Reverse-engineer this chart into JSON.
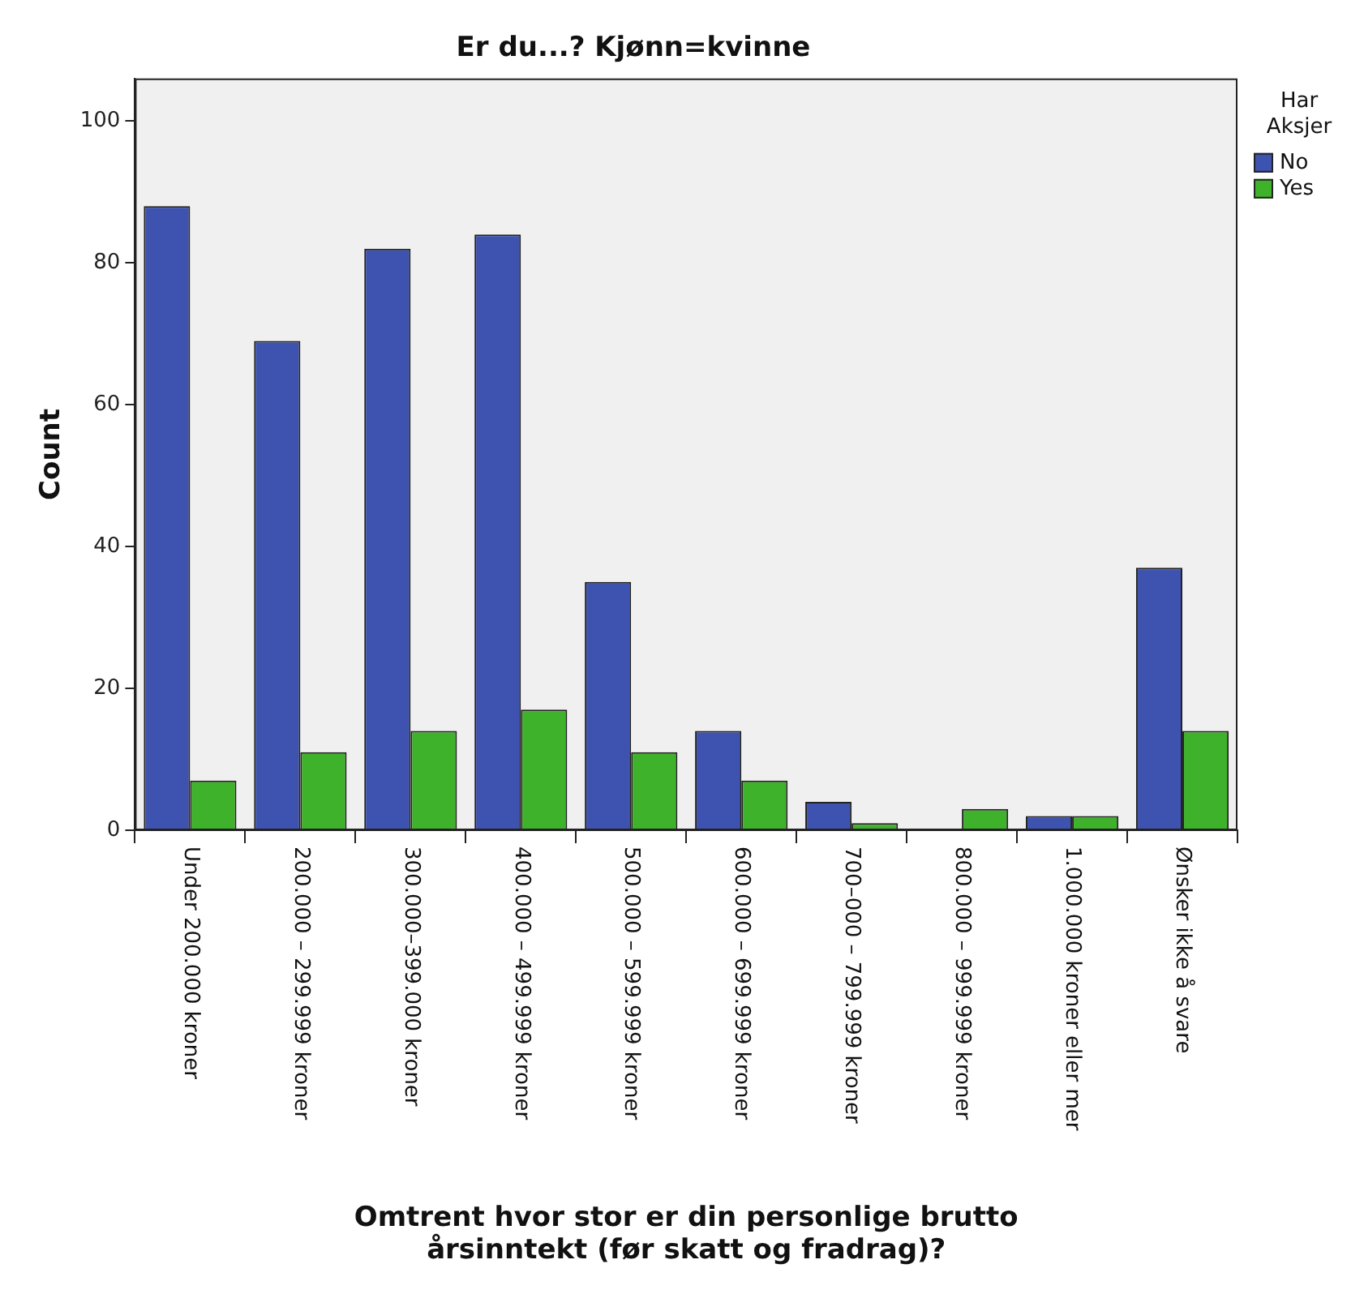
{
  "chart_data": {
    "type": "bar",
    "title": "Er du...? Kjønn=kvinne",
    "xlabel": "Omtrent hvor stor er din personlige brutto\nårsinntekt (før skatt og fradrag)?",
    "ylabel": "Count",
    "legend_title": "Har Aksjer",
    "categories": [
      "Under 200.000 kroner",
      "200.000 – 299.999 kroner",
      "300.000–399.000 kroner",
      "400.000 – 499.999 kroner",
      "500.000 – 599.999 kroner",
      "600.000 – 699.999 kroner",
      "700–000 – 799.999 kroner",
      "800.000 – 999.999 kroner",
      "1.000.000 kroner eller mer",
      "Ønsker ikke å svare"
    ],
    "series": [
      {
        "name": "No",
        "color": "#3e53b0",
        "values": [
          88,
          69,
          82,
          84,
          35,
          14,
          4,
          null,
          2,
          37
        ]
      },
      {
        "name": "Yes",
        "color": "#3fb22b",
        "values": [
          7,
          11,
          14,
          17,
          11,
          7,
          1,
          3,
          2,
          14
        ]
      }
    ],
    "ylim": [
      0,
      106
    ],
    "yticks": [
      0,
      20,
      40,
      60,
      80,
      100
    ],
    "grid": false,
    "legend": "top right"
  }
}
